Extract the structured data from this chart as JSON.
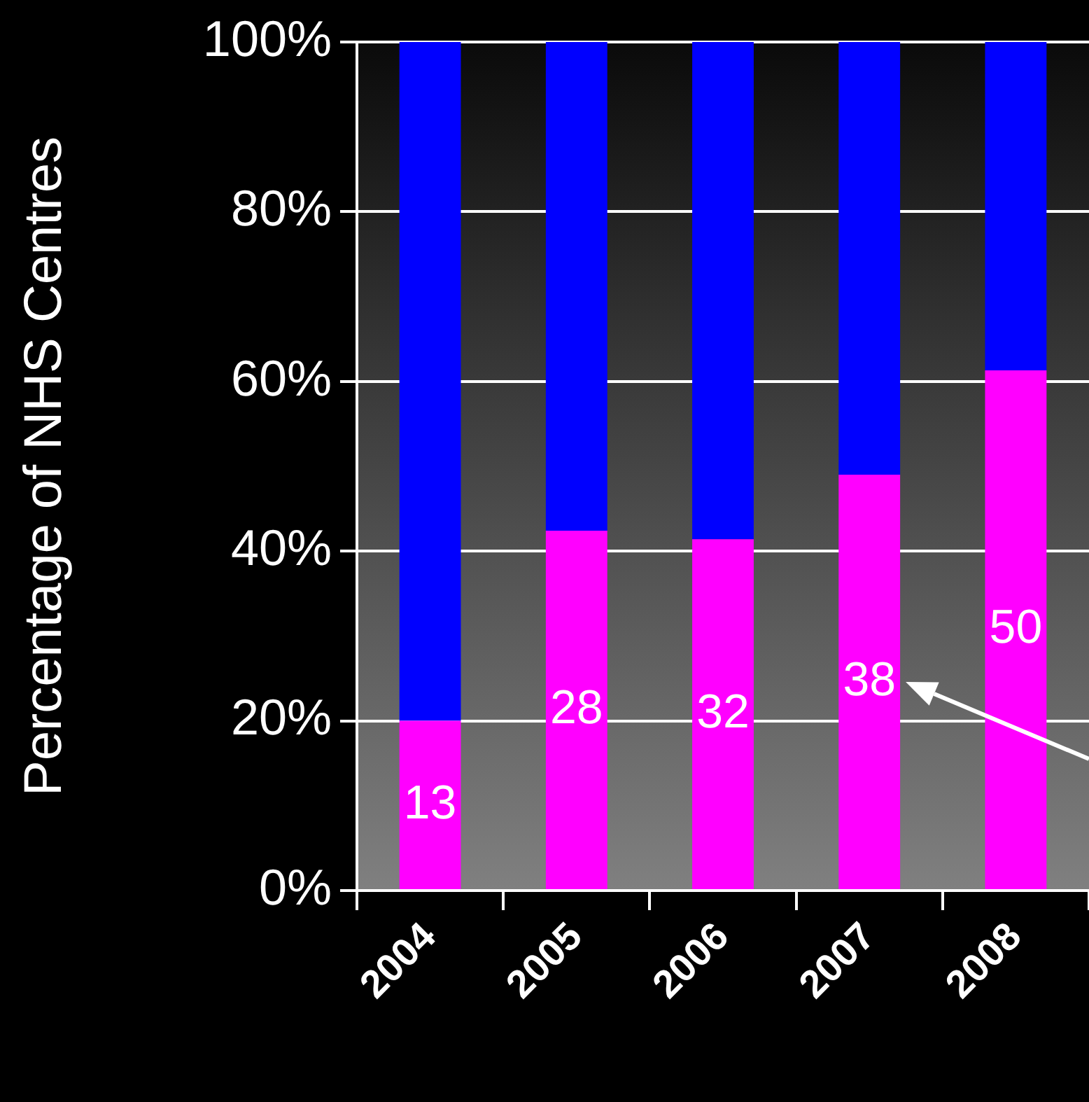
{
  "chart_data": {
    "type": "bar",
    "stacked": true,
    "ylabel": "Percentage of NHS Centres",
    "categories": [
      "2004",
      "2005",
      "2006",
      "2007",
      "2008"
    ],
    "series": [
      {
        "color": "#ff00ff",
        "values": [
          20,
          42.4,
          41.4,
          49,
          61.3
        ]
      },
      {
        "color": "#0000ff",
        "values": [
          80,
          57.6,
          58.6,
          51,
          38.7
        ]
      }
    ],
    "ylim": [
      0,
      100
    ],
    "yticks": [
      {
        "value": 0,
        "label": "0%"
      },
      {
        "value": 20,
        "label": "20%"
      },
      {
        "value": 40,
        "label": "40%"
      },
      {
        "value": 60,
        "label": "60%"
      },
      {
        "value": 80,
        "label": "80%"
      },
      {
        "value": 100,
        "label": "100%"
      }
    ],
    "annotations": [
      "13",
      "28",
      "32",
      "38",
      "50"
    ],
    "grid": "y",
    "legend": false
  }
}
